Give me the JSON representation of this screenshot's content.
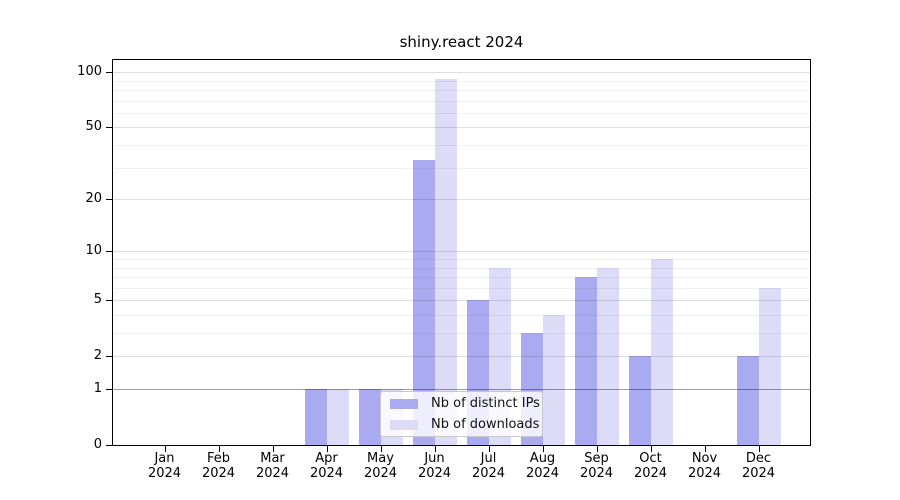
{
  "title": "shiny.react 2024",
  "colors": {
    "ips": "#aaaaf0",
    "downloads": "#dcdcf8",
    "axis": "#000000",
    "background": "#ffffff"
  },
  "legend": {
    "items": [
      {
        "label": "Nb of distinct IPs",
        "series": "ips"
      },
      {
        "label": "Nb of downloads",
        "series": "downloads"
      }
    ]
  },
  "y_axis": {
    "scale": "log1p",
    "tick_labels": [
      "0",
      "1",
      "2",
      "5",
      "10",
      "20",
      "50",
      "100"
    ],
    "tick_values": [
      0,
      1,
      2,
      5,
      10,
      20,
      50,
      100
    ],
    "minor_gridline_values": [
      3,
      4,
      6,
      7,
      8,
      9,
      30,
      40,
      60,
      70,
      80,
      90
    ]
  },
  "x_axis": {
    "months": [
      "Jan",
      "Feb",
      "Mar",
      "Apr",
      "May",
      "Jun",
      "Jul",
      "Aug",
      "Sep",
      "Oct",
      "Nov",
      "Dec"
    ],
    "year": "2024"
  },
  "chart_data": {
    "type": "bar",
    "title": "shiny.react 2024",
    "categories": [
      "Jan 2024",
      "Feb 2024",
      "Mar 2024",
      "Apr 2024",
      "May 2024",
      "Jun 2024",
      "Jul 2024",
      "Aug 2024",
      "Sep 2024",
      "Oct 2024",
      "Nov 2024",
      "Dec 2024"
    ],
    "series": [
      {
        "name": "Nb of distinct IPs",
        "key": "ips",
        "values": [
          0,
          0,
          0,
          1,
          1,
          33,
          5,
          3,
          7,
          2,
          0,
          2
        ]
      },
      {
        "name": "Nb of downloads",
        "key": "downloads",
        "values": [
          0,
          0,
          0,
          1,
          1,
          92,
          8,
          4,
          8,
          9,
          0,
          6
        ]
      }
    ],
    "yscale": "log1p",
    "ylim": [
      0,
      100
    ],
    "yticks": [
      0,
      1,
      2,
      5,
      10,
      20,
      50,
      100
    ],
    "grid": true,
    "legend_position": "lower center"
  }
}
